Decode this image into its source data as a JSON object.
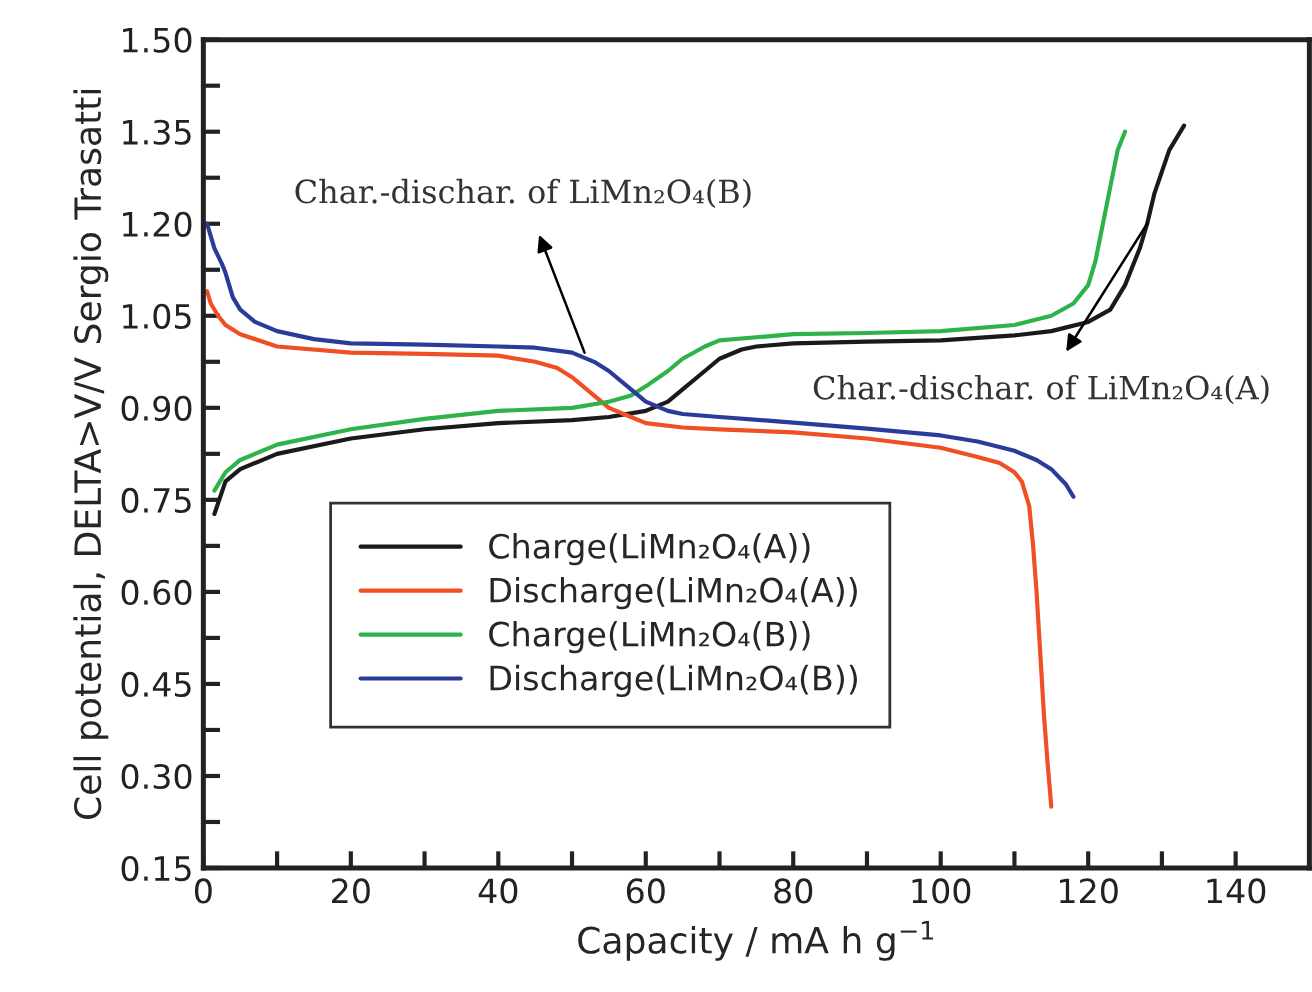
{
  "chart_data": {
    "type": "line",
    "xlabel": "Capacity / mA h g$^{−1}$",
    "ylabel": "Cell potential, DELTA>V/V Sergio Trasatti",
    "xlim": [
      0,
      150
    ],
    "ylim": [
      0.15,
      1.5
    ],
    "xticks": [
      0,
      {
        "value": 10,
        "label": null
      },
      20,
      {
        "value": 30,
        "label": null
      },
      40,
      {
        "value": 50,
        "label": null
      },
      60,
      {
        "value": 70,
        "label": null
      },
      80,
      {
        "value": 90,
        "label": null
      },
      100,
      {
        "value": 110,
        "label": null
      },
      120,
      {
        "value": 130,
        "label": null
      },
      140
    ],
    "yticks": [
      {
        "value": 0.15,
        "label": "0.15"
      },
      {
        "value": 0.225,
        "label": null
      },
      {
        "value": 0.3,
        "label": "0.30"
      },
      {
        "value": 0.375,
        "label": null
      },
      {
        "value": 0.45,
        "label": "0.45"
      },
      {
        "value": 0.525,
        "label": null
      },
      {
        "value": 0.6,
        "label": "0.60"
      },
      {
        "value": 0.675,
        "label": null
      },
      {
        "value": 0.75,
        "label": "0.75"
      },
      {
        "value": 0.825,
        "label": null
      },
      {
        "value": 0.9,
        "label": "0.90"
      },
      {
        "value": 0.975,
        "label": null
      },
      {
        "value": 1.05,
        "label": "1.05"
      },
      {
        "value": 1.125,
        "label": null
      },
      {
        "value": 1.2,
        "label": "1.20"
      },
      {
        "value": 1.275,
        "label": null
      },
      {
        "value": 1.35,
        "label": "1.35"
      },
      {
        "value": 1.425,
        "label": null
      },
      {
        "value": 1.5,
        "label": "1.50"
      }
    ],
    "grid": false,
    "legend": "bottom left",
    "marker": "none",
    "line_style": "solid",
    "series": [
      {
        "name": "Charge(LiMn₂O₄(A))",
        "color": "#1a1a1a",
        "x": [
          1.5,
          3,
          5,
          10,
          20,
          30,
          40,
          50,
          55,
          60,
          63,
          65,
          68,
          70,
          73,
          75,
          80,
          90,
          100,
          110,
          115,
          120,
          123,
          125,
          127,
          128,
          129,
          131,
          133
        ],
        "values": [
          0.727,
          0.78,
          0.8,
          0.825,
          0.85,
          0.865,
          0.875,
          0.88,
          0.885,
          0.895,
          0.91,
          0.93,
          0.96,
          0.98,
          0.995,
          1.0,
          1.005,
          1.008,
          1.01,
          1.018,
          1.025,
          1.04,
          1.06,
          1.1,
          1.16,
          1.2,
          1.25,
          1.32,
          1.36
        ]
      },
      {
        "name": "Discharge(LiMn₂O₄(A))",
        "color": "#f04e23",
        "x": [
          0.5,
          1,
          2,
          3,
          5,
          10,
          20,
          30,
          40,
          45,
          48,
          50,
          53,
          55,
          58,
          60,
          65,
          70,
          80,
          90,
          100,
          105,
          108,
          110,
          111,
          112,
          112.5,
          113,
          113.5,
          114,
          114.5,
          115
        ],
        "values": [
          1.09,
          1.07,
          1.05,
          1.035,
          1.02,
          1.0,
          0.99,
          0.988,
          0.985,
          0.975,
          0.965,
          0.95,
          0.92,
          0.9,
          0.885,
          0.875,
          0.868,
          0.865,
          0.86,
          0.85,
          0.835,
          0.82,
          0.81,
          0.795,
          0.78,
          0.74,
          0.68,
          0.6,
          0.5,
          0.4,
          0.32,
          0.25
        ]
      },
      {
        "name": "Charge(LiMn₂O₄(B))",
        "color": "#2db34a",
        "x": [
          1.5,
          3,
          5,
          10,
          20,
          30,
          40,
          50,
          55,
          58,
          60,
          63,
          65,
          68,
          70,
          75,
          80,
          90,
          100,
          110,
          115,
          118,
          120,
          121,
          122,
          123,
          124,
          125
        ],
        "values": [
          0.765,
          0.795,
          0.815,
          0.84,
          0.865,
          0.882,
          0.895,
          0.9,
          0.91,
          0.92,
          0.935,
          0.96,
          0.98,
          1.0,
          1.01,
          1.015,
          1.02,
          1.022,
          1.025,
          1.035,
          1.05,
          1.07,
          1.1,
          1.14,
          1.2,
          1.26,
          1.32,
          1.35
        ]
      },
      {
        "name": "Discharge(LiMn₂O₄(B))",
        "color": "#2b3b9a",
        "x": [
          0.5,
          1.5,
          2.5,
          3,
          4,
          5,
          7,
          10,
          15,
          20,
          30,
          40,
          45,
          50,
          53,
          55,
          58,
          60,
          63,
          65,
          70,
          80,
          90,
          100,
          105,
          110,
          113,
          115,
          117,
          118
        ],
        "values": [
          1.2,
          1.16,
          1.135,
          1.12,
          1.08,
          1.06,
          1.04,
          1.025,
          1.012,
          1.005,
          1.003,
          1.0,
          0.998,
          0.99,
          0.975,
          0.96,
          0.93,
          0.91,
          0.895,
          0.89,
          0.885,
          0.876,
          0.866,
          0.855,
          0.845,
          0.83,
          0.815,
          0.8,
          0.775,
          0.755
        ]
      }
    ],
    "annotations": [
      {
        "text": "Char.-dischar. of LiMn₂O₄(B)",
        "x": 51.7,
        "y": 0.99
      },
      {
        "text": "Char.-dischar. of LiMn₂O₄(A)",
        "x": 128,
        "y": 1.2
      }
    ]
  }
}
